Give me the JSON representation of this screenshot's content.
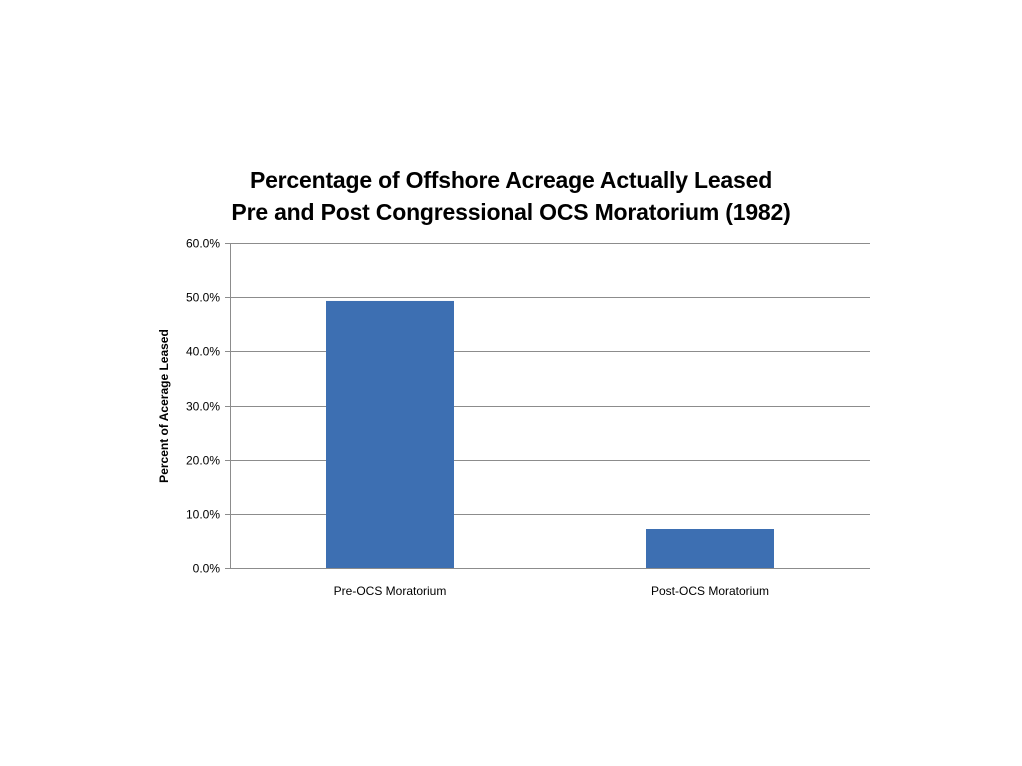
{
  "chart_data": {
    "type": "bar",
    "title": [
      "Percentage of Offshore Acreage Actually Leased",
      "Pre and Post Congressional OCS Moratorium (1982)"
    ],
    "xlabel": "",
    "ylabel": "Percent of Acerage Leased",
    "categories": [
      "Pre-OCS Moratorium",
      "Post-OCS Moratorium"
    ],
    "values": [
      49.3,
      7.2
    ],
    "ylim": [
      0,
      60
    ],
    "yticks": [
      0,
      10,
      20,
      30,
      40,
      50,
      60
    ],
    "ytick_labels": [
      "0.0%",
      "10.0%",
      "20.0%",
      "30.0%",
      "40.0%",
      "50.0%",
      "60.0%"
    ],
    "grid": true,
    "legend": "none",
    "colors": {
      "bar": "#3d6fb2",
      "grid": "#8c8c8c",
      "axis": "#8c8c8c",
      "text": "#000000"
    }
  }
}
